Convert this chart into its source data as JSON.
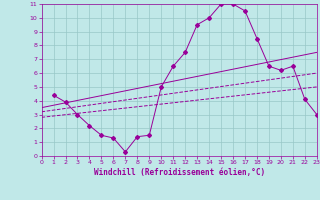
{
  "xlabel": "Windchill (Refroidissement éolien,°C)",
  "background_color": "#c0e8e8",
  "grid_color": "#98c8c8",
  "line_color": "#990099",
  "xlim": [
    0,
    23
  ],
  "ylim": [
    0,
    11
  ],
  "xticks": [
    0,
    1,
    2,
    3,
    4,
    5,
    6,
    7,
    8,
    9,
    10,
    11,
    12,
    13,
    14,
    15,
    16,
    17,
    18,
    19,
    20,
    21,
    22,
    23
  ],
  "yticks": [
    0,
    1,
    2,
    3,
    4,
    5,
    6,
    7,
    8,
    9,
    10,
    11
  ],
  "line1_x": [
    1,
    2,
    3,
    4,
    5,
    6,
    7,
    8,
    9,
    10,
    11,
    12,
    13,
    14,
    15,
    16,
    17,
    18,
    19,
    20,
    21,
    22,
    23
  ],
  "line1_y": [
    4.4,
    3.9,
    3.0,
    2.2,
    1.5,
    1.3,
    0.3,
    1.4,
    1.5,
    5.0,
    6.5,
    7.5,
    9.5,
    10.0,
    11.0,
    11.0,
    10.5,
    8.5,
    6.5,
    6.2,
    6.5,
    4.1,
    3.0
  ],
  "line2_x": [
    0,
    23
  ],
  "line2_y": [
    2.8,
    5.0
  ],
  "line3_x": [
    0,
    23
  ],
  "line3_y": [
    3.2,
    6.0
  ],
  "line4_x": [
    0,
    23
  ],
  "line4_y": [
    3.5,
    7.5
  ]
}
